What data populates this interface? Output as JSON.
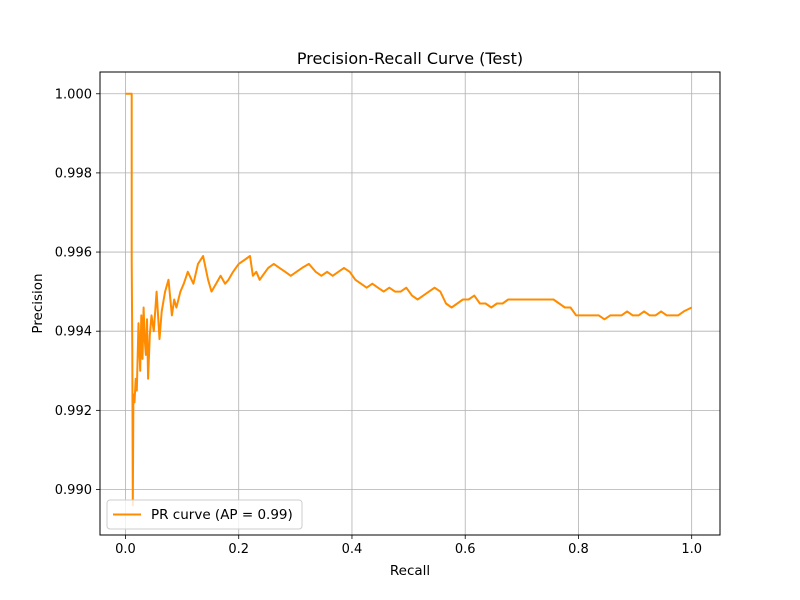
{
  "chart_data": {
    "type": "line",
    "title": "Precision-Recall Curve  (Test)",
    "xlabel": "Recall",
    "ylabel": "Precision",
    "xlim": [
      -0.045,
      1.05
    ],
    "ylim": [
      0.98885,
      1.00055
    ],
    "xticks": [
      0.0,
      0.2,
      0.4,
      0.6,
      0.8,
      1.0
    ],
    "xtick_labels": [
      "0.0",
      "0.2",
      "0.4",
      "0.6",
      "0.8",
      "1.0"
    ],
    "yticks": [
      0.99,
      0.992,
      0.994,
      0.996,
      0.998,
      1.0
    ],
    "ytick_labels": [
      "0.990",
      "0.992",
      "0.994",
      "0.996",
      "0.998",
      "1.000"
    ],
    "grid": true,
    "legend_position": "lower-left",
    "series": [
      {
        "name": "PR curve (AP = 0.99)",
        "color": "#ff8c00",
        "x": [
          0.0,
          0.011,
          0.011,
          0.012,
          0.013,
          0.014,
          0.016,
          0.018,
          0.02,
          0.023,
          0.026,
          0.028,
          0.03,
          0.032,
          0.034,
          0.036,
          0.038,
          0.04,
          0.043,
          0.046,
          0.05,
          0.055,
          0.06,
          0.064,
          0.07,
          0.076,
          0.082,
          0.086,
          0.09,
          0.097,
          0.103,
          0.11,
          0.12,
          0.128,
          0.137,
          0.143,
          0.146,
          0.152,
          0.16,
          0.168,
          0.176,
          0.182,
          0.19,
          0.2,
          0.21,
          0.22,
          0.225,
          0.231,
          0.237,
          0.242,
          0.252,
          0.262,
          0.272,
          0.282,
          0.292,
          0.302,
          0.312,
          0.324,
          0.336,
          0.346,
          0.356,
          0.366,
          0.376,
          0.386,
          0.396,
          0.406,
          0.416,
          0.426,
          0.436,
          0.446,
          0.456,
          0.466,
          0.476,
          0.486,
          0.496,
          0.506,
          0.516,
          0.526,
          0.536,
          0.546,
          0.556,
          0.566,
          0.576,
          0.586,
          0.596,
          0.606,
          0.616,
          0.626,
          0.636,
          0.646,
          0.656,
          0.666,
          0.676,
          0.686,
          0.696,
          0.706,
          0.716,
          0.726,
          0.736,
          0.746,
          0.756,
          0.766,
          0.776,
          0.786,
          0.796,
          0.806,
          0.816,
          0.826,
          0.836,
          0.846,
          0.856,
          0.866,
          0.876,
          0.886,
          0.896,
          0.906,
          0.916,
          0.926,
          0.936,
          0.946,
          0.956,
          0.966,
          0.976,
          0.986,
          1.0
        ],
        "y": [
          1.0,
          1.0,
          0.9958,
          0.9935,
          0.9896,
          0.9924,
          0.9922,
          0.9928,
          0.9925,
          0.9942,
          0.993,
          0.9944,
          0.9933,
          0.9946,
          0.9938,
          0.9934,
          0.9943,
          0.9928,
          0.9939,
          0.9944,
          0.994,
          0.995,
          0.9938,
          0.9945,
          0.995,
          0.9953,
          0.9944,
          0.9948,
          0.9946,
          0.995,
          0.9952,
          0.9955,
          0.9952,
          0.9957,
          0.9959,
          0.9955,
          0.9953,
          0.995,
          0.9952,
          0.9954,
          0.9952,
          0.9953,
          0.9955,
          0.9957,
          0.9958,
          0.9959,
          0.9954,
          0.9955,
          0.9953,
          0.9954,
          0.9956,
          0.9957,
          0.9956,
          0.9955,
          0.9954,
          0.9955,
          0.9956,
          0.9957,
          0.9955,
          0.9954,
          0.9955,
          0.9954,
          0.9955,
          0.9956,
          0.9955,
          0.9953,
          0.9952,
          0.9951,
          0.9952,
          0.9951,
          0.995,
          0.9951,
          0.995,
          0.995,
          0.9951,
          0.9949,
          0.9948,
          0.9949,
          0.995,
          0.9951,
          0.995,
          0.9947,
          0.9946,
          0.9947,
          0.9948,
          0.9948,
          0.9949,
          0.9947,
          0.9947,
          0.9946,
          0.9947,
          0.9947,
          0.9948,
          0.9948,
          0.9948,
          0.9948,
          0.9948,
          0.9948,
          0.9948,
          0.9948,
          0.9948,
          0.9947,
          0.9946,
          0.9946,
          0.9944,
          0.9944,
          0.9944,
          0.9944,
          0.9944,
          0.9943,
          0.9944,
          0.9944,
          0.9944,
          0.9945,
          0.9944,
          0.9944,
          0.9945,
          0.9944,
          0.9944,
          0.9945,
          0.9944,
          0.9944,
          0.9944,
          0.9945,
          0.9946
        ]
      }
    ]
  }
}
